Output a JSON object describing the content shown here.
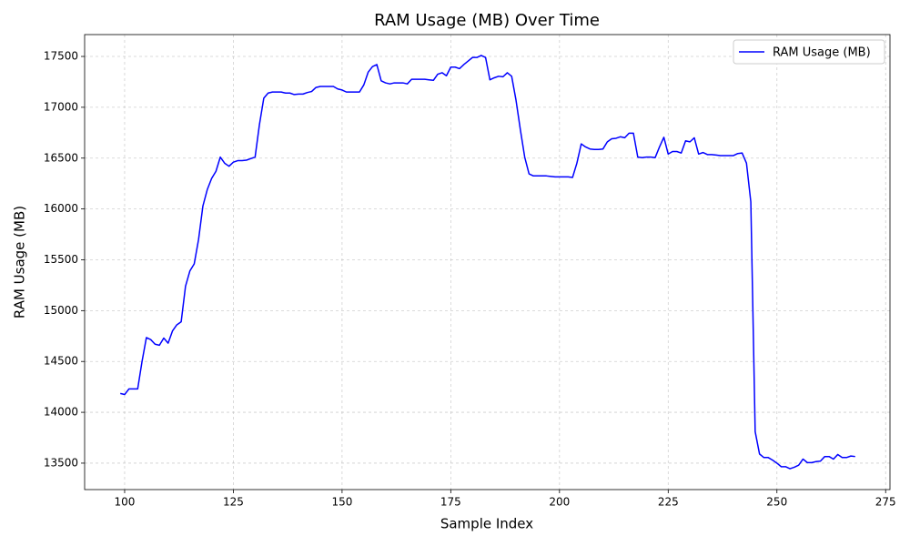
{
  "chart_data": {
    "type": "line",
    "title": "RAM Usage (MB) Over Time",
    "xlabel": "Sample Index",
    "ylabel": "RAM Usage (MB)",
    "x": [
      99,
      100,
      101,
      102,
      103,
      104,
      105,
      106,
      107,
      108,
      109,
      110,
      111,
      112,
      113,
      114,
      115,
      116,
      117,
      118,
      119,
      120,
      121,
      122,
      123,
      124,
      125,
      126,
      127,
      128,
      129,
      130,
      131,
      132,
      133,
      134,
      135,
      136,
      137,
      138,
      139,
      140,
      141,
      142,
      143,
      144,
      145,
      146,
      147,
      148,
      149,
      150,
      151,
      152,
      153,
      154,
      155,
      156,
      157,
      158,
      159,
      160,
      161,
      162,
      163,
      164,
      165,
      166,
      167,
      168,
      169,
      170,
      171,
      172,
      173,
      174,
      175,
      176,
      177,
      178,
      179,
      180,
      181,
      182,
      183,
      184,
      185,
      186,
      187,
      188,
      189,
      190,
      191,
      192,
      193,
      194,
      195,
      196,
      197,
      198,
      199,
      200,
      201,
      202,
      203,
      204,
      205,
      206,
      207,
      208,
      209,
      210,
      211,
      212,
      213,
      214,
      215,
      216,
      217,
      218,
      219,
      220,
      221,
      222,
      223,
      224,
      225,
      226,
      227,
      228,
      229,
      230,
      231,
      232,
      233,
      234,
      235,
      236,
      237,
      238,
      239,
      240,
      241,
      242,
      243,
      244,
      245,
      246,
      247,
      248,
      249,
      250,
      251,
      252,
      253,
      254,
      255,
      256,
      257,
      258,
      259,
      260,
      261,
      262,
      263,
      264,
      265,
      266,
      267,
      268
    ],
    "series": [
      {
        "name": "RAM Usage (MB)",
        "color": "#0000ff",
        "values": [
          14185,
          14175,
          14230,
          14230,
          14230,
          14500,
          14735,
          14715,
          14670,
          14660,
          14730,
          14680,
          14800,
          14860,
          14890,
          15240,
          15390,
          15460,
          15700,
          16030,
          16190,
          16300,
          16370,
          16510,
          16450,
          16420,
          16460,
          16475,
          16475,
          16480,
          16495,
          16510,
          16830,
          17090,
          17140,
          17150,
          17150,
          17150,
          17140,
          17140,
          17125,
          17130,
          17130,
          17145,
          17155,
          17195,
          17205,
          17205,
          17205,
          17205,
          17180,
          17170,
          17150,
          17150,
          17150,
          17150,
          17220,
          17345,
          17400,
          17420,
          17260,
          17240,
          17230,
          17240,
          17240,
          17240,
          17230,
          17275,
          17275,
          17275,
          17275,
          17270,
          17265,
          17325,
          17340,
          17310,
          17395,
          17395,
          17380,
          17420,
          17455,
          17490,
          17490,
          17510,
          17490,
          17270,
          17290,
          17305,
          17300,
          17340,
          17305,
          17070,
          16780,
          16510,
          16345,
          16325,
          16325,
          16325,
          16325,
          16320,
          16315,
          16315,
          16315,
          16315,
          16310,
          16450,
          16640,
          16610,
          16590,
          16585,
          16585,
          16590,
          16660,
          16690,
          16695,
          16710,
          16700,
          16745,
          16745,
          16510,
          16505,
          16510,
          16510,
          16505,
          16610,
          16705,
          16540,
          16565,
          16565,
          16550,
          16670,
          16660,
          16700,
          16540,
          16555,
          16535,
          16535,
          16530,
          16525,
          16525,
          16525,
          16525,
          16545,
          16550,
          16450,
          16070,
          13810,
          13590,
          13555,
          13555,
          13530,
          13500,
          13465,
          13465,
          13445,
          13460,
          13480,
          13540,
          13505,
          13505,
          13515,
          13520,
          13565,
          13565,
          13540,
          13585,
          13555,
          13555,
          13570,
          13565
        ]
      }
    ],
    "xlim": [
      90.8,
      276
    ],
    "ylim": [
      13240,
      17715
    ],
    "xticks": [
      100,
      125,
      150,
      175,
      200,
      225,
      250,
      275
    ],
    "yticks": [
      13500,
      14000,
      14500,
      15000,
      15500,
      16000,
      16500,
      17000,
      17500
    ],
    "grid": true,
    "legend": "upper right"
  }
}
